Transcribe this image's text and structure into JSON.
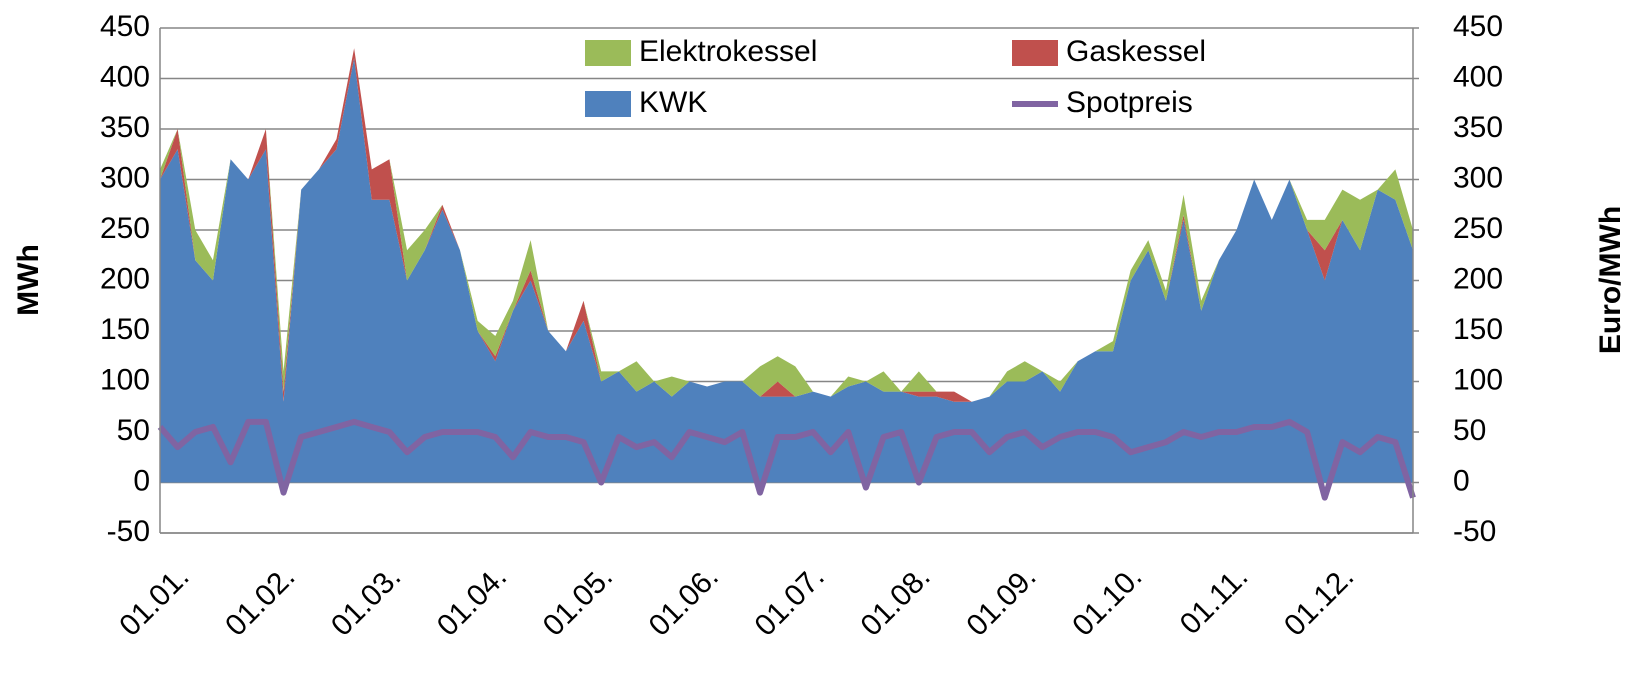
{
  "chart_data": {
    "type": "stacked-area",
    "y_label": "MWh",
    "y2_label": "Euro/MWh",
    "categories": [
      "01.01.",
      null,
      null,
      null,
      null,
      null,
      "01.02.",
      null,
      null,
      null,
      null,
      null,
      "01.03.",
      null,
      null,
      null,
      null,
      null,
      "01.04.",
      null,
      null,
      null,
      null,
      null,
      "01.05.",
      null,
      null,
      null,
      null,
      null,
      "01.06.",
      null,
      null,
      null,
      null,
      null,
      "01.07.",
      null,
      null,
      null,
      null,
      null,
      "01.08.",
      null,
      null,
      null,
      null,
      null,
      "01.09.",
      null,
      null,
      null,
      null,
      null,
      "01.10.",
      null,
      null,
      null,
      null,
      null,
      "01.11.",
      null,
      null,
      null,
      null,
      null,
      "01.12.",
      null,
      null,
      null,
      null,
      null
    ],
    "series": [
      {
        "name": "KWK",
        "color": "#4f81bd",
        "values": [
          300,
          330,
          220,
          200,
          320,
          300,
          330,
          80,
          290,
          310,
          330,
          420,
          280,
          280,
          200,
          230,
          270,
          230,
          150,
          120,
          170,
          200,
          150,
          130,
          160,
          100,
          110,
          90,
          100,
          85,
          100,
          95,
          100,
          100,
          85,
          85,
          85,
          90,
          85,
          95,
          100,
          90,
          90,
          85,
          85,
          80,
          80,
          85,
          100,
          100,
          110,
          90,
          120,
          130,
          130,
          200,
          230,
          180,
          260,
          170,
          220,
          250,
          300,
          260,
          300,
          250,
          200,
          260,
          230,
          290,
          280,
          230
        ]
      },
      {
        "name": "Gaskessel",
        "color": "#c0504d",
        "values": [
          0,
          20,
          0,
          0,
          0,
          0,
          20,
          10,
          0,
          0,
          10,
          10,
          30,
          40,
          0,
          0,
          5,
          0,
          0,
          5,
          0,
          10,
          0,
          0,
          20,
          0,
          0,
          0,
          0,
          0,
          0,
          0,
          0,
          0,
          0,
          15,
          0,
          0,
          0,
          0,
          0,
          0,
          0,
          5,
          5,
          10,
          0,
          0,
          0,
          0,
          0,
          0,
          0,
          0,
          0,
          0,
          0,
          0,
          5,
          0,
          0,
          0,
          0,
          0,
          0,
          0,
          30,
          0,
          0,
          0,
          0,
          0
        ]
      },
      {
        "name": "Elektrokessel",
        "color": "#9bbb59",
        "values": [
          10,
          0,
          30,
          20,
          0,
          0,
          0,
          20,
          0,
          0,
          0,
          0,
          0,
          0,
          30,
          20,
          0,
          0,
          10,
          20,
          10,
          30,
          0,
          0,
          0,
          10,
          0,
          30,
          0,
          20,
          0,
          0,
          0,
          0,
          30,
          25,
          30,
          0,
          0,
          10,
          0,
          20,
          0,
          20,
          0,
          0,
          0,
          0,
          10,
          20,
          0,
          10,
          0,
          0,
          10,
          10,
          10,
          10,
          20,
          10,
          0,
          0,
          0,
          0,
          0,
          10,
          30,
          30,
          50,
          0,
          30,
          20
        ]
      },
      {
        "name": "Spotpreis",
        "color": "#8064a2",
        "axis": "y2",
        "values": [
          55,
          35,
          50,
          55,
          20,
          60,
          60,
          -10,
          45,
          50,
          55,
          60,
          55,
          50,
          30,
          45,
          50,
          50,
          50,
          45,
          25,
          50,
          45,
          45,
          40,
          0,
          45,
          35,
          40,
          25,
          50,
          45,
          40,
          50,
          -10,
          45,
          45,
          50,
          30,
          50,
          -5,
          45,
          50,
          0,
          45,
          50,
          50,
          30,
          45,
          50,
          35,
          45,
          50,
          50,
          45,
          30,
          35,
          40,
          50,
          45,
          50,
          50,
          55,
          55,
          60,
          50,
          -15,
          40,
          30,
          45,
          40,
          -15
        ]
      }
    ],
    "ylim": [
      -50,
      450
    ],
    "yticks": [
      -50,
      0,
      50,
      100,
      150,
      200,
      250,
      300,
      350,
      400,
      450
    ],
    "y2lim": [
      -50,
      450
    ],
    "y2ticks": [
      -50,
      0,
      50,
      100,
      150,
      200,
      250,
      300,
      350,
      400,
      450
    ],
    "grid": true
  }
}
